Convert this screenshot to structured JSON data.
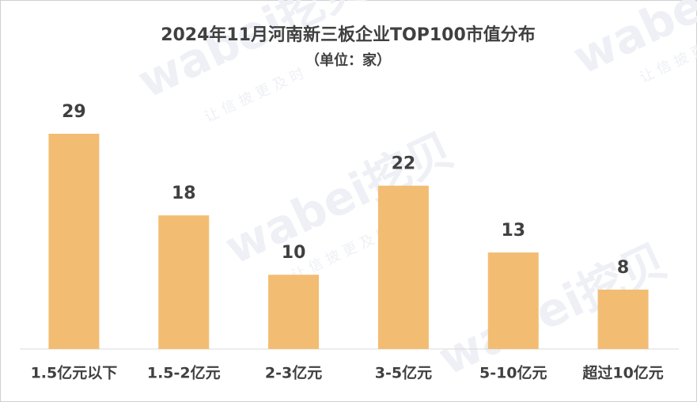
{
  "chart_data": {
    "type": "bar",
    "title": "2024年11月河南新三板企业TOP100市值分布",
    "subtitle": "（单位：家）",
    "categories": [
      "1.5亿元以下",
      "1.5-2亿元",
      "2-3亿元",
      "3-5亿元",
      "5-10亿元",
      "超过10亿元"
    ],
    "values": [
      29,
      18,
      10,
      22,
      13,
      8
    ],
    "color": "#f2bd73"
  },
  "watermark": {
    "brand": "wabei挖贝",
    "slogan": "让 信 披 更 及 时"
  }
}
